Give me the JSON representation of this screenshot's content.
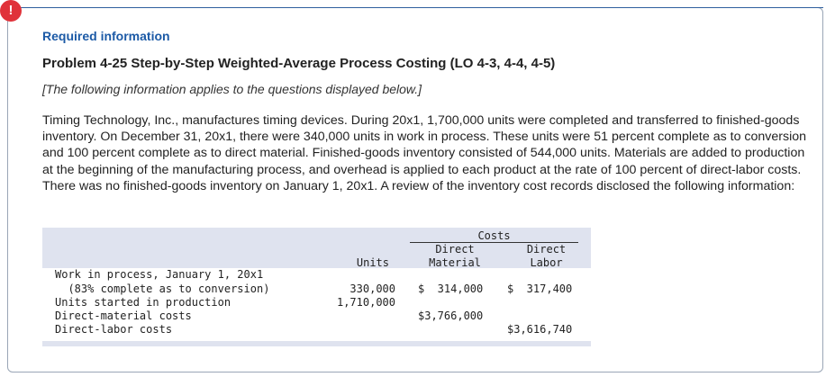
{
  "header": {
    "alert_icon": "!",
    "required_label": "Required information",
    "title": "Problem 4-25 Step-by-Step Weighted-Average Process Costing (LO 4-3, 4-4, 4-5)",
    "note": "[The following information applies to the questions displayed below.]"
  },
  "body": {
    "paragraph": "Timing Technology, Inc., manufactures timing devices. During 20x1, 1,700,000 units were completed and transferred to finished-goods inventory. On December 31, 20x1, there were 340,000 units in work in process. These units were 51 percent complete as to conversion and 100 percent complete as to direct material. Finished-goods inventory consisted of 544,000 units. Materials are added to production at the beginning of the manufacturing process, and overhead is applied to each product at the rate of 100 percent of direct-labor costs. There was no finished-goods inventory on January 1, 20x1. A review of the inventory cost records disclosed the following information:"
  },
  "table": {
    "costs_header": "Costs",
    "col_units": "Units",
    "col_dm_1": "Direct",
    "col_dm_2": "Material",
    "col_dl_1": "Direct",
    "col_dl_2": "Labor",
    "rows": [
      {
        "label": "Work in process, January 1, 20x1",
        "units": "",
        "dm": "",
        "dl": ""
      },
      {
        "label": "  (83% complete as to conversion)",
        "units": "330,000",
        "dm": "$  314,000",
        "dl": "$  317,400"
      },
      {
        "label": "Units started in production",
        "units": "1,710,000",
        "dm": "",
        "dl": ""
      },
      {
        "label": "Direct-material costs",
        "units": "",
        "dm": "$3,766,000",
        "dl": ""
      },
      {
        "label": "Direct-labor costs",
        "units": "",
        "dm": "",
        "dl": "$3,616,740"
      }
    ]
  },
  "colors": {
    "accent": "#1c5aa6",
    "alert": "#e0323a",
    "table_band": "#dfe3ef"
  }
}
